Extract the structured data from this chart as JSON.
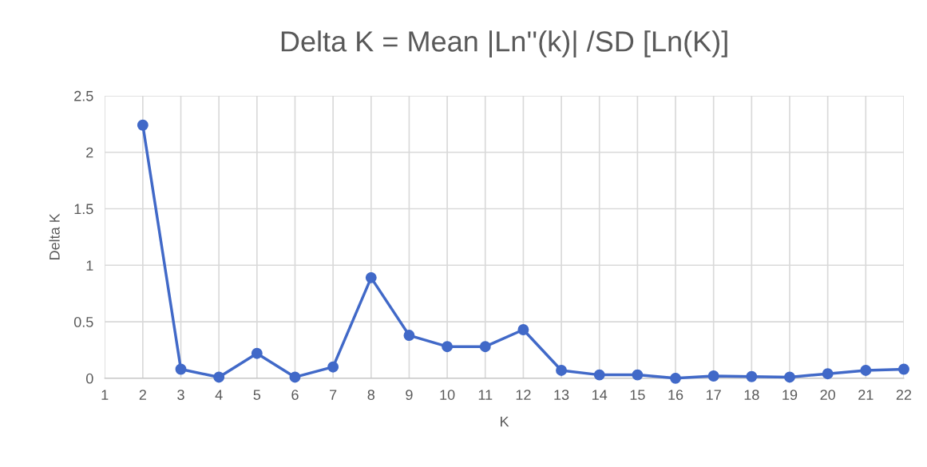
{
  "chart_data": {
    "type": "line",
    "title": "Delta K = Mean |Ln''(k)| /SD [Ln(K)]",
    "xlabel": "K",
    "ylabel": "Delta K",
    "categories": [
      "1",
      "2",
      "3",
      "4",
      "5",
      "6",
      "7",
      "8",
      "9",
      "10",
      "11",
      "12",
      "13",
      "14",
      "15",
      "16",
      "17",
      "18",
      "19",
      "20",
      "21",
      "22"
    ],
    "series": [
      {
        "color": "#4169c8",
        "values": [
          null,
          2.24,
          0.08,
          0.01,
          0.22,
          0.01,
          0.1,
          0.89,
          0.38,
          0.28,
          0.28,
          0.43,
          0.07,
          0.03,
          0.03,
          0.0,
          0.02,
          0.015,
          0.01,
          0.04,
          0.07,
          0.08
        ]
      }
    ],
    "ylim": [
      0,
      2.5
    ],
    "yticks": [
      0,
      0.5,
      1,
      1.5,
      2,
      2.5
    ],
    "grid": true,
    "marker": "circle",
    "line_style": "solid"
  }
}
